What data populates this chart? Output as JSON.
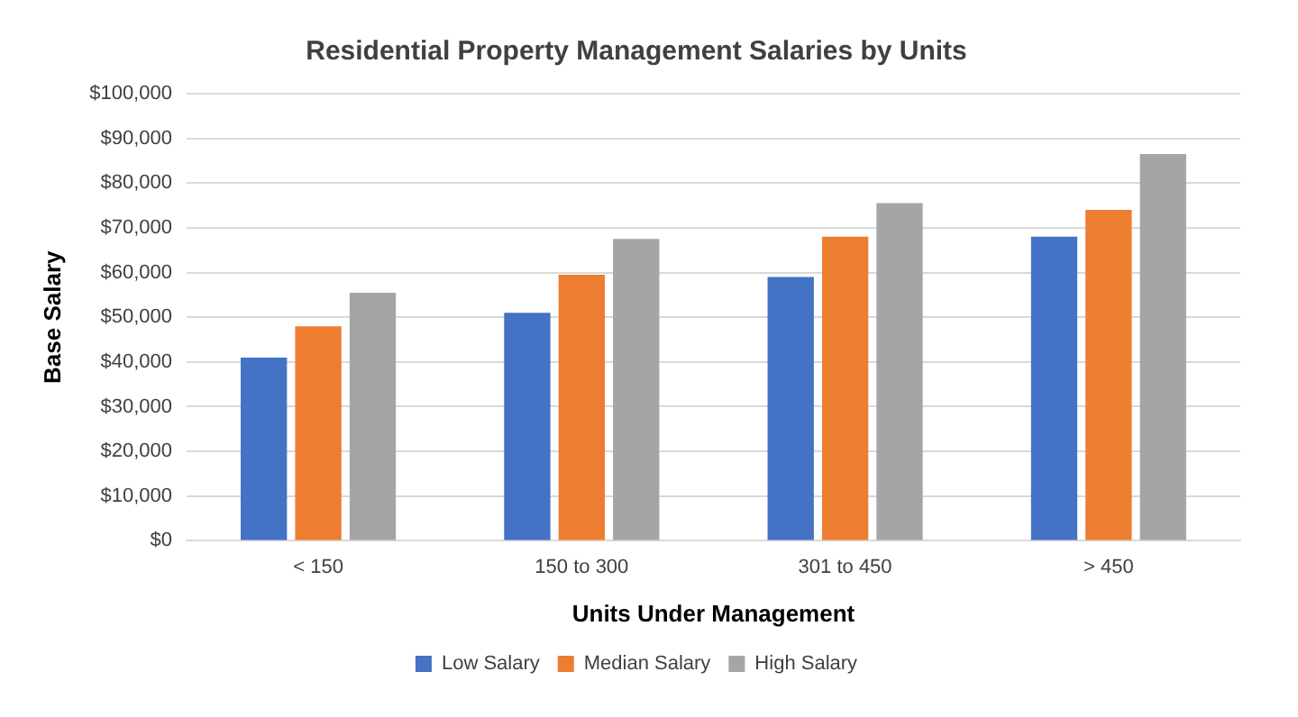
{
  "chart_data": {
    "type": "bar",
    "title": "Residential Property Management Salaries by Units",
    "xlabel": "Units Under Management",
    "ylabel": "Base Salary",
    "categories": [
      "< 150",
      "150 to 300",
      "301 to 450",
      "> 450"
    ],
    "series": [
      {
        "name": "Low Salary",
        "color": "#4472c4",
        "values": [
          41000,
          51000,
          59000,
          68000
        ]
      },
      {
        "name": "Median Salary",
        "color": "#ed7d31",
        "values": [
          48000,
          59500,
          68000,
          74000
        ]
      },
      {
        "name": "High Salary",
        "color": "#a5a5a5",
        "values": [
          55500,
          67500,
          75500,
          86500
        ]
      }
    ],
    "ylim": [
      0,
      100000
    ],
    "yticks": [
      {
        "value": 0,
        "label": "$0"
      },
      {
        "value": 10000,
        "label": "$10,000"
      },
      {
        "value": 20000,
        "label": "$20,000"
      },
      {
        "value": 30000,
        "label": "$30,000"
      },
      {
        "value": 40000,
        "label": "$40,000"
      },
      {
        "value": 50000,
        "label": "$50,000"
      },
      {
        "value": 60000,
        "label": "$60,000"
      },
      {
        "value": 70000,
        "label": "$70,000"
      },
      {
        "value": 80000,
        "label": "$80,000"
      },
      {
        "value": 90000,
        "label": "$90,000"
      },
      {
        "value": 100000,
        "label": "$100,000"
      }
    ],
    "grid": "y",
    "legend": "bottom"
  }
}
